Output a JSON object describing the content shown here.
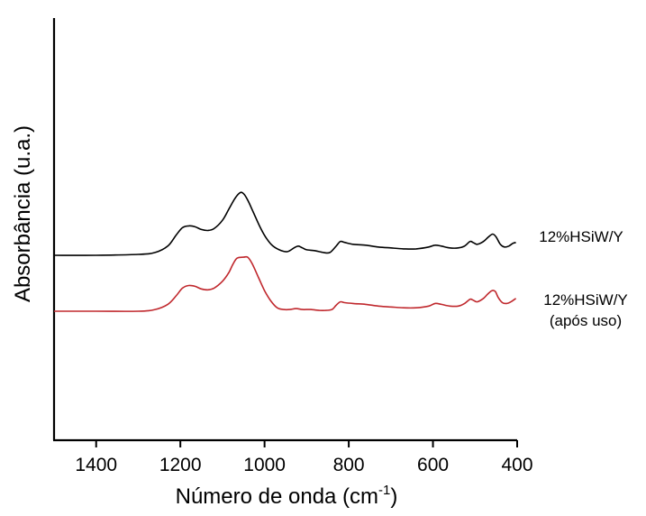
{
  "chart_data": {
    "type": "line",
    "title": "",
    "xlabel_main": "Número de onda (cm",
    "xlabel_sup": "-1",
    "xlabel_close": ")",
    "ylabel": "Absorbância (u.a.)",
    "xlim": [
      1500,
      400
    ],
    "x_reversed": true,
    "y_ticks_shown": false,
    "grid": false,
    "x_ticks": [
      "1400",
      "1200",
      "1000",
      "800",
      "600",
      "400"
    ],
    "x_tick_values": [
      1400,
      1200,
      1000,
      800,
      600,
      400
    ],
    "series": [
      {
        "name": "12%HSiW/Y",
        "label_lines": [
          "12%HSiW/Y"
        ],
        "color": "#000000",
        "points": [
          [
            1500,
            0.1
          ],
          [
            1400,
            0.1
          ],
          [
            1300,
            0.11
          ],
          [
            1260,
            0.13
          ],
          [
            1230,
            0.2
          ],
          [
            1210,
            0.32
          ],
          [
            1195,
            0.4
          ],
          [
            1180,
            0.42
          ],
          [
            1165,
            0.41
          ],
          [
            1150,
            0.38
          ],
          [
            1135,
            0.37
          ],
          [
            1120,
            0.39
          ],
          [
            1100,
            0.48
          ],
          [
            1085,
            0.6
          ],
          [
            1070,
            0.72
          ],
          [
            1058,
            0.78
          ],
          [
            1050,
            0.77
          ],
          [
            1040,
            0.7
          ],
          [
            1025,
            0.55
          ],
          [
            1010,
            0.4
          ],
          [
            995,
            0.28
          ],
          [
            980,
            0.2
          ],
          [
            960,
            0.15
          ],
          [
            945,
            0.14
          ],
          [
            930,
            0.18
          ],
          [
            920,
            0.2
          ],
          [
            910,
            0.18
          ],
          [
            900,
            0.16
          ],
          [
            880,
            0.15
          ],
          [
            860,
            0.13
          ],
          [
            845,
            0.13
          ],
          [
            830,
            0.2
          ],
          [
            820,
            0.25
          ],
          [
            810,
            0.24
          ],
          [
            790,
            0.22
          ],
          [
            760,
            0.21
          ],
          [
            730,
            0.19
          ],
          [
            700,
            0.18
          ],
          [
            670,
            0.17
          ],
          [
            640,
            0.17
          ],
          [
            610,
            0.19
          ],
          [
            595,
            0.21
          ],
          [
            580,
            0.2
          ],
          [
            560,
            0.18
          ],
          [
            540,
            0.18
          ],
          [
            525,
            0.2
          ],
          [
            512,
            0.25
          ],
          [
            505,
            0.24
          ],
          [
            495,
            0.22
          ],
          [
            480,
            0.25
          ],
          [
            468,
            0.3
          ],
          [
            458,
            0.33
          ],
          [
            450,
            0.3
          ],
          [
            440,
            0.22
          ],
          [
            430,
            0.19
          ],
          [
            420,
            0.2
          ],
          [
            410,
            0.23
          ],
          [
            403,
            0.24
          ]
        ]
      },
      {
        "name": "12%HSiW/Y (após uso)",
        "label_lines": [
          "12%HSiW/Y",
          "(após uso)"
        ],
        "color": "#c0282d",
        "points": [
          [
            1500,
            0.1
          ],
          [
            1400,
            0.1
          ],
          [
            1300,
            0.1
          ],
          [
            1260,
            0.12
          ],
          [
            1230,
            0.18
          ],
          [
            1210,
            0.28
          ],
          [
            1195,
            0.37
          ],
          [
            1180,
            0.4
          ],
          [
            1165,
            0.39
          ],
          [
            1150,
            0.36
          ],
          [
            1135,
            0.35
          ],
          [
            1120,
            0.37
          ],
          [
            1100,
            0.45
          ],
          [
            1085,
            0.55
          ],
          [
            1075,
            0.65
          ],
          [
            1065,
            0.72
          ],
          [
            1050,
            0.73
          ],
          [
            1040,
            0.73
          ],
          [
            1030,
            0.66
          ],
          [
            1015,
            0.5
          ],
          [
            1000,
            0.34
          ],
          [
            985,
            0.22
          ],
          [
            970,
            0.14
          ],
          [
            955,
            0.12
          ],
          [
            940,
            0.12
          ],
          [
            925,
            0.13
          ],
          [
            910,
            0.12
          ],
          [
            890,
            0.12
          ],
          [
            870,
            0.11
          ],
          [
            855,
            0.11
          ],
          [
            840,
            0.12
          ],
          [
            830,
            0.17
          ],
          [
            820,
            0.21
          ],
          [
            810,
            0.2
          ],
          [
            790,
            0.19
          ],
          [
            760,
            0.18
          ],
          [
            730,
            0.16
          ],
          [
            700,
            0.15
          ],
          [
            670,
            0.14
          ],
          [
            640,
            0.14
          ],
          [
            610,
            0.16
          ],
          [
            595,
            0.19
          ],
          [
            580,
            0.18
          ],
          [
            560,
            0.16
          ],
          [
            540,
            0.16
          ],
          [
            525,
            0.19
          ],
          [
            512,
            0.24
          ],
          [
            505,
            0.23
          ],
          [
            495,
            0.21
          ],
          [
            480,
            0.25
          ],
          [
            470,
            0.3
          ],
          [
            460,
            0.34
          ],
          [
            452,
            0.33
          ],
          [
            445,
            0.26
          ],
          [
            435,
            0.2
          ],
          [
            425,
            0.19
          ],
          [
            415,
            0.21
          ],
          [
            403,
            0.25
          ]
        ]
      }
    ]
  }
}
